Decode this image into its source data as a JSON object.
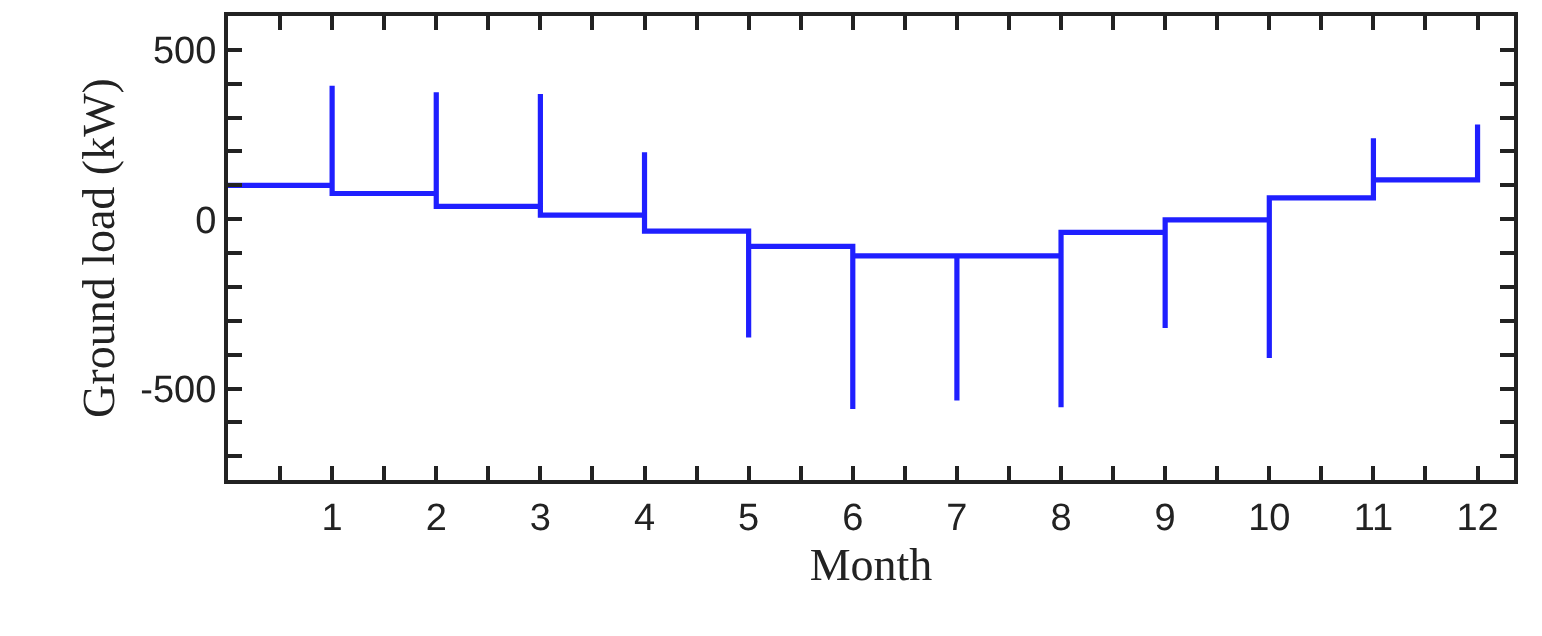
{
  "chart_data": {
    "type": "line",
    "xlabel": "Month",
    "ylabel": "Ground load (kW)",
    "series": [
      {
        "color": "#1f1fff",
        "x": [
          0,
          1,
          1,
          1,
          2,
          2,
          2,
          3,
          3,
          3,
          4,
          4,
          4,
          5,
          5,
          5,
          6,
          6,
          6,
          7,
          7,
          7,
          8,
          8,
          8,
          9,
          9,
          9,
          10,
          10,
          10,
          11,
          11,
          11,
          12,
          12
        ],
        "values": [
          100,
          100,
          394,
          76,
          76,
          375,
          38,
          38,
          370,
          12,
          12,
          198,
          -35,
          -35,
          -349,
          -80,
          -80,
          -560,
          -108,
          -108,
          -535,
          -108,
          -108,
          -555,
          -39,
          -39,
          -321,
          -2,
          -2,
          -410,
          63,
          63,
          239,
          116,
          116,
          280
        ]
      }
    ],
    "xlim": [
      0,
      12.35
    ],
    "xticks": [
      {
        "value": 0.5,
        "label": null
      },
      1,
      {
        "value": 1.5,
        "label": null
      },
      2,
      {
        "value": 2.5,
        "label": null
      },
      3,
      {
        "value": 3.5,
        "label": null
      },
      4,
      {
        "value": 4.5,
        "label": null
      },
      5,
      {
        "value": 5.5,
        "label": null
      },
      6,
      {
        "value": 6.5,
        "label": null
      },
      7,
      {
        "value": 7.5,
        "label": null
      },
      8,
      {
        "value": 8.5,
        "label": null
      },
      9,
      {
        "value": 9.5,
        "label": null
      },
      10,
      {
        "value": 10.5,
        "label": null
      },
      11,
      {
        "value": 11.5,
        "label": null
      },
      12
    ],
    "ylim": [
      -770,
      600
    ],
    "yticks": [
      {
        "value": -700,
        "label": null
      },
      {
        "value": -600,
        "label": null
      },
      -500,
      {
        "value": -400,
        "label": null
      },
      {
        "value": -300,
        "label": null
      },
      {
        "value": -200,
        "label": null
      },
      {
        "value": -100,
        "label": null
      },
      0,
      {
        "value": 100,
        "label": null
      },
      {
        "value": 200,
        "label": null
      },
      {
        "value": 300,
        "label": null
      },
      {
        "value": 400,
        "label": null
      },
      500
    ],
    "marker": "none",
    "line_style": "solid"
  }
}
